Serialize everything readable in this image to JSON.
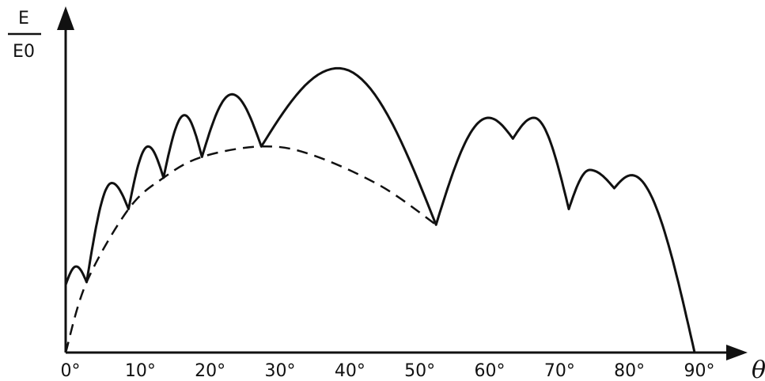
{
  "chart_data": {
    "type": "line",
    "title": "",
    "ylabel_numerator": "E",
    "ylabel_denominator": "E0",
    "xlabel": "θ",
    "xlim": [
      0,
      90
    ],
    "ylim": [
      0,
      1.2
    ],
    "x_ticks": [
      0,
      10,
      20,
      30,
      40,
      50,
      60,
      70,
      80,
      90
    ],
    "x_tick_labels": [
      "0°",
      "10°",
      "20°",
      "30°",
      "40°",
      "50°",
      "60°",
      "70°",
      "80°",
      "90°"
    ],
    "grid": false,
    "legend": "none",
    "series": [
      {
        "style": "solid",
        "lobes": [
          {
            "x0": 0.0,
            "x1": 3.0,
            "peak_x": 1.5,
            "y0": 0.26,
            "peak": 0.33,
            "y1": 0.27
          },
          {
            "x0": 3.0,
            "x1": 9.0,
            "peak_x": 6.6,
            "y0": 0.27,
            "peak": 0.65,
            "y1": 0.55
          },
          {
            "x0": 9.0,
            "x1": 14.0,
            "peak_x": 11.8,
            "y0": 0.55,
            "peak": 0.79,
            "y1": 0.67
          },
          {
            "x0": 14.0,
            "x1": 19.5,
            "peak_x": 17.0,
            "y0": 0.67,
            "peak": 0.91,
            "y1": 0.75
          },
          {
            "x0": 19.5,
            "x1": 28.0,
            "peak_x": 23.8,
            "y0": 0.75,
            "peak": 0.99,
            "y1": 0.79
          },
          {
            "x0": 28.0,
            "x1": 53.0,
            "peak_x": 39.0,
            "y0": 0.79,
            "peak": 1.09,
            "y1": 0.49
          },
          {
            "x0": 53.0,
            "x1": 64.0,
            "peak_x": 60.5,
            "y0": 0.49,
            "peak": 0.9,
            "y1": 0.82
          },
          {
            "x0": 64.0,
            "x1": 72.0,
            "peak_x": 67.0,
            "y0": 0.82,
            "peak": 0.9,
            "y1": 0.55
          },
          {
            "x0": 72.0,
            "x1": 78.5,
            "peak_x": 75.0,
            "y0": 0.55,
            "peak": 0.7,
            "y1": 0.63
          },
          {
            "x0": 78.5,
            "x1": 90.0,
            "peak_x": 81.0,
            "y0": 0.63,
            "peak": 0.68,
            "y1": 0.0
          }
        ]
      },
      {
        "style": "dashed",
        "x": [
          0,
          3,
          9,
          14,
          19.5,
          28,
          35,
          45,
          53
        ],
        "y": [
          0,
          0.27,
          0.55,
          0.67,
          0.75,
          0.79,
          0.76,
          0.64,
          0.49
        ]
      }
    ]
  }
}
